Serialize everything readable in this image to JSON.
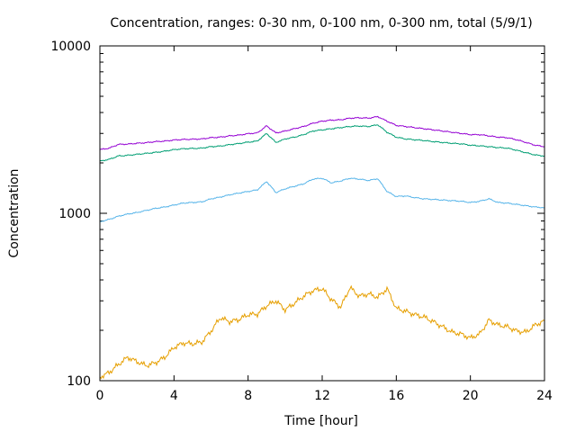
{
  "chart_data": {
    "type": "line",
    "title": "Concentration, ranges: 0-30 nm, 0-100 nm, 0-300 nm, total (5/9/1)",
    "xlabel": "Time [hour]",
    "ylabel": "Concentration",
    "xlim": [
      0,
      24
    ],
    "ylim": [
      100,
      10000
    ],
    "yscale": "log",
    "grid": false,
    "x_ticks": [
      0,
      4,
      8,
      12,
      16,
      20,
      24
    ],
    "x_tick_labels": [
      "0",
      "4",
      "8",
      "12",
      "16",
      "20",
      "24"
    ],
    "y_ticks": [
      100,
      1000,
      10000
    ],
    "y_tick_labels": [
      "100",
      "1000",
      "10000"
    ],
    "x": [
      0,
      0.5,
      1,
      1.5,
      2,
      2.5,
      3,
      3.5,
      4,
      4.5,
      5,
      5.5,
      6,
      6.5,
      7,
      7.5,
      8,
      8.5,
      9,
      9.5,
      10,
      10.5,
      11,
      11.5,
      12,
      12.5,
      13,
      13.5,
      14,
      14.5,
      15,
      15.5,
      16,
      16.5,
      17,
      17.5,
      18,
      18.5,
      19,
      19.5,
      20,
      20.5,
      21,
      21.5,
      22,
      22.5,
      23,
      23.5,
      24
    ],
    "series": [
      {
        "color": "#9400d3",
        "values": [
          2400,
          2450,
          2580,
          2590,
          2620,
          2640,
          2680,
          2700,
          2740,
          2760,
          2770,
          2780,
          2830,
          2850,
          2900,
          2930,
          2990,
          3020,
          3330,
          3020,
          3100,
          3200,
          3300,
          3450,
          3550,
          3600,
          3620,
          3700,
          3720,
          3700,
          3780,
          3550,
          3350,
          3300,
          3250,
          3200,
          3150,
          3100,
          3050,
          3000,
          2950,
          2950,
          2900,
          2850,
          2830,
          2750,
          2650,
          2550,
          2500
        ]
      },
      {
        "color": "#009e73",
        "values": [
          2050,
          2100,
          2200,
          2220,
          2250,
          2280,
          2310,
          2350,
          2400,
          2430,
          2440,
          2450,
          2500,
          2520,
          2570,
          2610,
          2660,
          2700,
          3000,
          2650,
          2780,
          2850,
          2950,
          3100,
          3150,
          3200,
          3250,
          3300,
          3320,
          3300,
          3380,
          3050,
          2850,
          2780,
          2750,
          2720,
          2680,
          2650,
          2620,
          2600,
          2550,
          2530,
          2500,
          2470,
          2450,
          2380,
          2300,
          2230,
          2200
        ]
      },
      {
        "color": "#56b4e9",
        "values": [
          890,
          920,
          960,
          990,
          1010,
          1040,
          1070,
          1090,
          1120,
          1150,
          1160,
          1170,
          1220,
          1250,
          1290,
          1320,
          1350,
          1380,
          1550,
          1330,
          1400,
          1450,
          1500,
          1600,
          1620,
          1520,
          1560,
          1620,
          1600,
          1570,
          1610,
          1350,
          1260,
          1270,
          1240,
          1220,
          1210,
          1200,
          1190,
          1180,
          1160,
          1180,
          1220,
          1160,
          1150,
          1130,
          1110,
          1090,
          1080
        ]
      },
      {
        "color": "#e69f00",
        "values": [
          105,
          112,
          125,
          138,
          130,
          123,
          128,
          138,
          158,
          168,
          166,
          170,
          198,
          238,
          225,
          232,
          248,
          250,
          280,
          300,
          265,
          290,
          320,
          345,
          355,
          305,
          275,
          360,
          320,
          330,
          315,
          355,
          270,
          260,
          248,
          240,
          225,
          210,
          195,
          190,
          180,
          190,
          230,
          215,
          210,
          198,
          195,
          215,
          228
        ]
      }
    ]
  }
}
